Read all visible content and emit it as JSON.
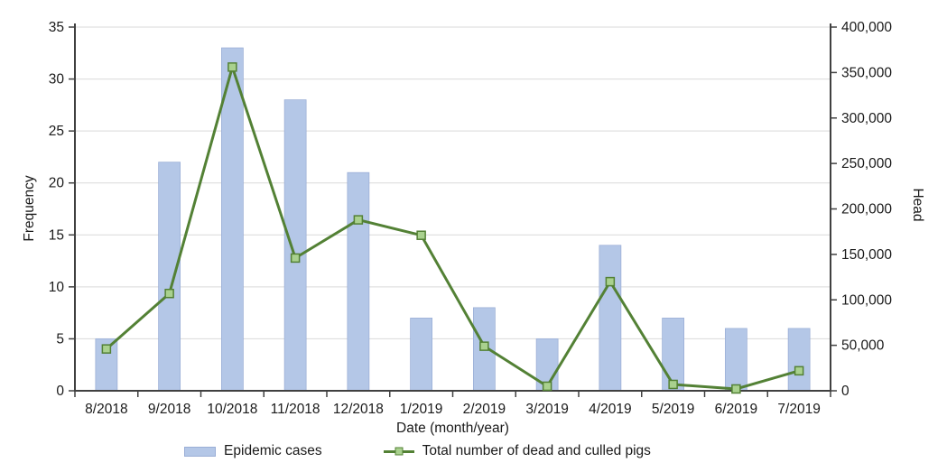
{
  "chart_data": {
    "type": "combo-bar-line",
    "title": "",
    "xlabel": "Date (month/year)",
    "ylabel_left": "Frequency",
    "ylabel_right": "Head",
    "categories": [
      "8/2018",
      "9/2018",
      "10/2018",
      "11/2018",
      "12/2018",
      "1/2019",
      "2/2019",
      "3/2019",
      "4/2019",
      "5/2019",
      "6/2019",
      "7/2019"
    ],
    "series": [
      {
        "name": "Epidemic cases",
        "type": "bar",
        "axis": "left",
        "values": [
          5,
          22,
          33,
          28,
          21,
          7,
          8,
          5,
          14,
          7,
          6,
          6
        ]
      },
      {
        "name": "Total number of dead and culled pigs",
        "type": "line",
        "axis": "right",
        "values": [
          46000,
          107000,
          356000,
          146000,
          188000,
          171000,
          49000,
          5000,
          120000,
          7000,
          2000,
          22000
        ]
      }
    ],
    "left_axis": {
      "min": 0,
      "max": 35,
      "step": 5
    },
    "right_axis": {
      "min": 0,
      "max": 400000,
      "step": 50000,
      "tick_format": "comma"
    },
    "grid": {
      "horizontal": true,
      "follows": "left-axis"
    },
    "legend_position": "bottom"
  },
  "colors": {
    "bar_fill": "#b4c7e7",
    "bar_border": "#9aaed6",
    "line": "#538135",
    "marker_fill": "#a9d18e",
    "gridline": "#d9d9d9",
    "axis": "#404040",
    "text": "#1a1a1a"
  }
}
